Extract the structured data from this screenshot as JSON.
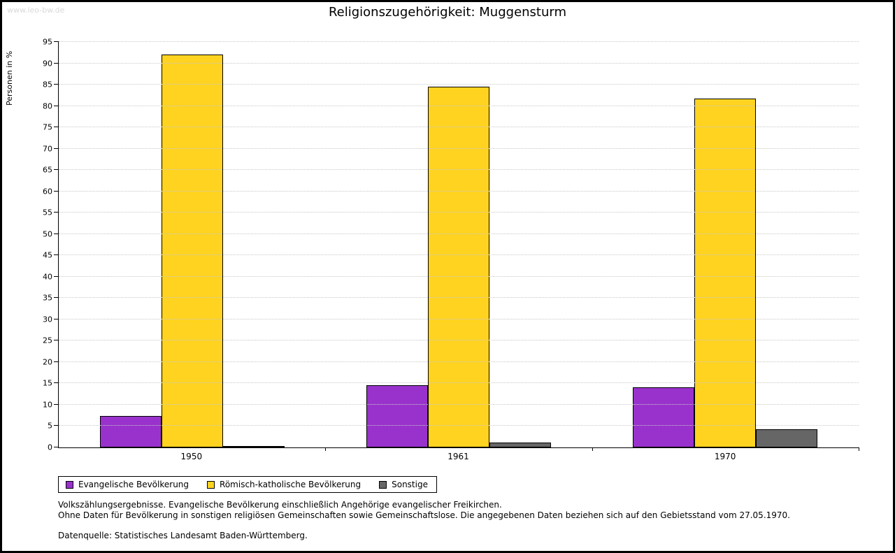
{
  "watermark": "www.leo-bw.de",
  "title": "Religionszugehörigkeit: Muggensturm",
  "chart_data": {
    "type": "bar",
    "title": "Religionszugehörigkeit: Muggensturm",
    "xlabel": "",
    "ylabel": "Personen in %",
    "ylim": [
      0,
      95
    ],
    "ytick_step": 5,
    "grid": true,
    "legend_position": "bottom",
    "categories": [
      "1950",
      "1961",
      "1970"
    ],
    "series": [
      {
        "name": "Evangelische Bevölkerung",
        "color": "#9932cc",
        "values": [
          7.4,
          14.5,
          14.1
        ]
      },
      {
        "name": "Römisch-katholische Bevölkerung",
        "color": "#ffd320",
        "values": [
          92.1,
          84.6,
          81.7
        ]
      },
      {
        "name": "Sonstige",
        "color": "#666666",
        "values": [
          0.4,
          1.1,
          4.2
        ]
      }
    ]
  },
  "footnotes": {
    "line1": "Volkszählungsergebnisse. Evangelische Bevölkerung einschließlich Angehörige evangelischer Freikirchen.",
    "line2": "Ohne Daten für Bevölkerung in sonstigen religiösen Gemeinschaften sowie Gemeinschaftslose. Die angegebenen Daten beziehen sich auf den Gebietsstand vom 27.05.1970.",
    "source": "Datenquelle: Statistisches Landesamt Baden-Württemberg."
  }
}
